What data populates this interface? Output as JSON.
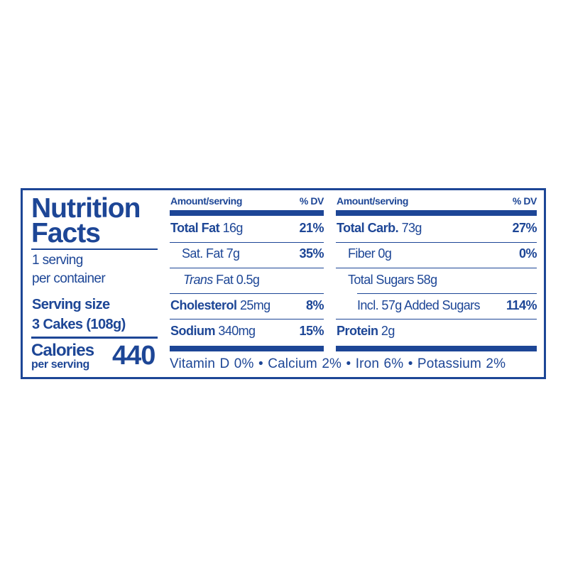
{
  "left": {
    "title_line1": "Nutrition",
    "title_line2": "Facts",
    "servings_line1": "1 serving",
    "servings_line2": "per container",
    "serving_size_label": "Serving size",
    "serving_size_value": "3 Cakes (108g)",
    "calories_label": "Calories",
    "calories_sub": "per serving",
    "calories_value": "440"
  },
  "middle": {
    "header_amount": "Amount/serving",
    "header_dv": "% DV",
    "rows": [
      {
        "label": "Total Fat",
        "amount": "16g",
        "dv": "21%"
      },
      {
        "label": "Sat. Fat 7g",
        "dv": "35%"
      },
      {
        "label_italic": "Trans",
        "label": "Fat 0.5g"
      },
      {
        "label": "Cholesterol",
        "amount": "25mg",
        "dv": "8%"
      },
      {
        "label": "Sodium",
        "amount": "340mg",
        "dv": "15%"
      }
    ]
  },
  "right": {
    "header_amount": "Amount/serving",
    "header_dv": "% DV",
    "rows": [
      {
        "label": "Total Carb.",
        "amount": "73g",
        "dv": "27%"
      },
      {
        "label": "Fiber 0g",
        "dv": "0%"
      },
      {
        "label": "Total Sugars 58g"
      },
      {
        "label": "Incl. 57g Added Sugars",
        "dv": "114%"
      },
      {
        "label": "Protein",
        "amount": "2g"
      }
    ]
  },
  "footer": "Vitamin D 0% • Calcium 2% • Iron 6% • Potassium 2%",
  "colors": {
    "ink": "#1d4696",
    "background": "#ffffff"
  }
}
